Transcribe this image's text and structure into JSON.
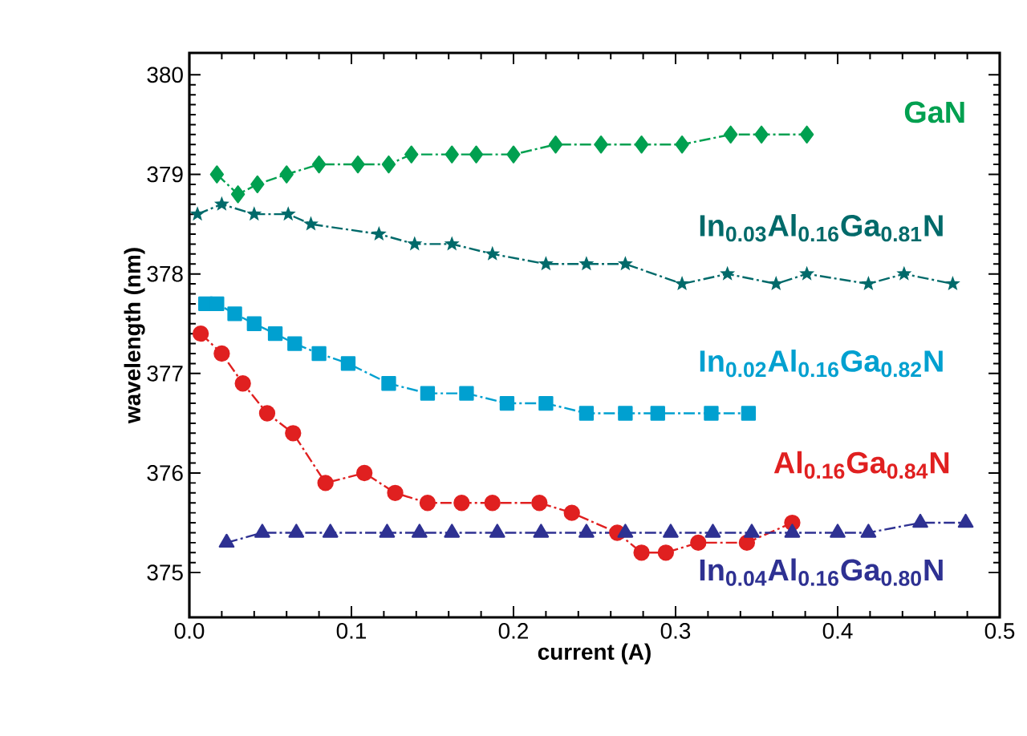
{
  "chart_data": {
    "type": "line",
    "xlabel": "current (A)",
    "ylabel": "wavelength (nm)",
    "xlim": [
      0,
      0.5
    ],
    "ylim": [
      374.55,
      380.22
    ],
    "xticks": [
      {
        "value": 0,
        "label": "0.0"
      },
      0.1,
      0.2,
      0.3,
      0.4,
      0.5
    ],
    "yticks": [
      375,
      376,
      377,
      378,
      379,
      380
    ],
    "grid": false,
    "line_style": "dashed",
    "series": [
      {
        "name": "GaN",
        "color": "#00a050",
        "marker": "diamond",
        "x": [
          0.017,
          0.03,
          0.042,
          0.06,
          0.08,
          0.104,
          0.123,
          0.137,
          0.162,
          0.177,
          0.2,
          0.226,
          0.254,
          0.279,
          0.304,
          0.334,
          0.353,
          0.381
        ],
        "values": [
          379.0,
          378.8,
          378.9,
          379.0,
          379.1,
          379.1,
          379.1,
          379.2,
          379.2,
          379.2,
          379.2,
          379.3,
          379.3,
          379.3,
          379.3,
          379.4,
          379.4,
          379.4
        ]
      },
      {
        "name": "In$_{0.03}$Al$_{0.16}$Ga$_{0.81}$N",
        "color": "#006a6a",
        "marker": "star",
        "x": [
          0.005,
          0.02,
          0.04,
          0.061,
          0.075,
          0.117,
          0.139,
          0.162,
          0.187,
          0.22,
          0.245,
          0.269,
          0.304,
          0.332,
          0.362,
          0.381,
          0.419,
          0.441,
          0.471
        ],
        "values": [
          378.6,
          378.7,
          378.6,
          378.6,
          378.5,
          378.4,
          378.3,
          378.3,
          378.2,
          378.1,
          378.1,
          378.1,
          377.9,
          378.0,
          377.9,
          378.0,
          377.9,
          378.0,
          377.9
        ]
      },
      {
        "name": "In$_{0.02}$Al$_{0.16}$Ga$_{0.82}$N",
        "color": "#00a0d0",
        "marker": "square",
        "x": [
          0.01,
          0.017,
          0.028,
          0.04,
          0.053,
          0.065,
          0.08,
          0.098,
          0.123,
          0.147,
          0.171,
          0.196,
          0.22,
          0.245,
          0.269,
          0.289,
          0.322,
          0.345
        ],
        "values": [
          377.7,
          377.7,
          377.6,
          377.5,
          377.4,
          377.3,
          377.2,
          377.1,
          376.9,
          376.8,
          376.8,
          376.7,
          376.7,
          376.6,
          376.6,
          376.6,
          376.6,
          376.6
        ]
      },
      {
        "name": "Al$_{0.16}$Ga$_{0.84}$N",
        "color": "#e02020",
        "marker": "circle",
        "x": [
          0.007,
          0.02,
          0.033,
          0.048,
          0.064,
          0.084,
          0.108,
          0.127,
          0.147,
          0.168,
          0.187,
          0.216,
          0.236,
          0.264,
          0.279,
          0.294,
          0.314,
          0.344,
          0.372
        ],
        "values": [
          377.4,
          377.2,
          376.9,
          376.6,
          376.4,
          375.9,
          376.0,
          375.8,
          375.7,
          375.7,
          375.7,
          375.7,
          375.6,
          375.4,
          375.2,
          375.2,
          375.3,
          375.3,
          375.5
        ]
      },
      {
        "name": "In$_{0.04}$Al$_{0.16}$Ga$_{0.80}$N",
        "color": "#2e3192",
        "marker": "triangle",
        "x": [
          0.023,
          0.045,
          0.066,
          0.087,
          0.122,
          0.142,
          0.162,
          0.19,
          0.217,
          0.245,
          0.269,
          0.297,
          0.323,
          0.347,
          0.372,
          0.4,
          0.419,
          0.451,
          0.479
        ],
        "values": [
          375.3,
          375.4,
          375.4,
          375.4,
          375.4,
          375.4,
          375.4,
          375.4,
          375.4,
          375.4,
          375.4,
          375.4,
          375.4,
          375.4,
          375.4,
          375.4,
          375.4,
          375.5,
          375.5
        ]
      }
    ]
  }
}
